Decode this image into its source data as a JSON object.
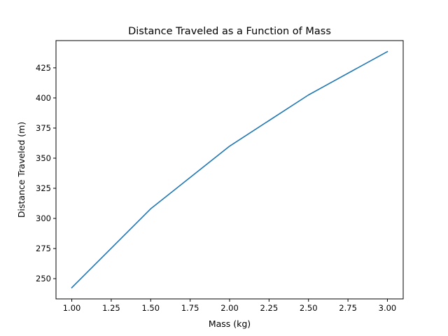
{
  "chart_data": {
    "type": "line",
    "title": "Distance Traveled as a Function of Mass",
    "xlabel": "Mass (kg)",
    "ylabel": "Distance Traveled (m)",
    "xlim": [
      0.9,
      3.1
    ],
    "ylim": [
      233.2,
      447.6
    ],
    "x_ticks": [
      "1.00",
      "1.25",
      "1.50",
      "1.75",
      "2.00",
      "2.25",
      "2.50",
      "2.75",
      "3.00"
    ],
    "y_ticks": [
      "250",
      "275",
      "300",
      "325",
      "350",
      "375",
      "400",
      "425"
    ],
    "grid": false,
    "series": [
      {
        "color": "#1f77b4",
        "x": [
          1.0,
          1.5,
          2.0,
          2.5,
          3.0
        ],
        "y": [
          242.5,
          308.0,
          360.0,
          402.5,
          438.5
        ]
      }
    ]
  }
}
